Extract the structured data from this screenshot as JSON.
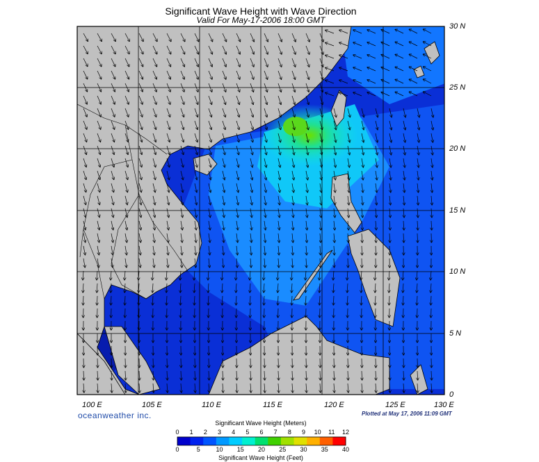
{
  "header": {
    "title": "Significant Wave Height with Wave Direction",
    "subtitle": "Valid For May-17-2006 18:00 GMT"
  },
  "axes": {
    "lat_labels": [
      "30 N",
      "25 N",
      "20 N",
      "15 N",
      "10 N",
      "5 N",
      "0"
    ],
    "lon_labels": [
      "100 E",
      "105 E",
      "110 E",
      "115 E",
      "120 E",
      "125 E",
      "130 E"
    ]
  },
  "footer": {
    "brand": "oceanweather inc.",
    "plotted": "Plotted at May 17, 2006 11:09 GMT"
  },
  "legend": {
    "meters_title": "Significant Wave Height (Meters)",
    "feet_title": "Significant Wave Height (Feet)",
    "meters_ticks": [
      "0",
      "1",
      "2",
      "3",
      "4",
      "5",
      "6",
      "7",
      "8",
      "9",
      "10",
      "11",
      "12"
    ],
    "feet_ticks": [
      "0",
      "5",
      "10",
      "15",
      "20",
      "25",
      "30",
      "35",
      "40"
    ],
    "colors": [
      "#0000cc",
      "#0022ee",
      "#0055ff",
      "#0099ff",
      "#00ccff",
      "#00f0d0",
      "#00e070",
      "#40d000",
      "#a0e000",
      "#e0e000",
      "#ffb000",
      "#ff6000",
      "#ff0000"
    ]
  },
  "colors": {
    "land": "#c0c0c0",
    "ocean_low": "#0a2fd6",
    "ocean_mid": "#1670ff",
    "ocean_high": "#18e8e0",
    "peak": "#4ad81a",
    "grid": "#000000"
  }
}
